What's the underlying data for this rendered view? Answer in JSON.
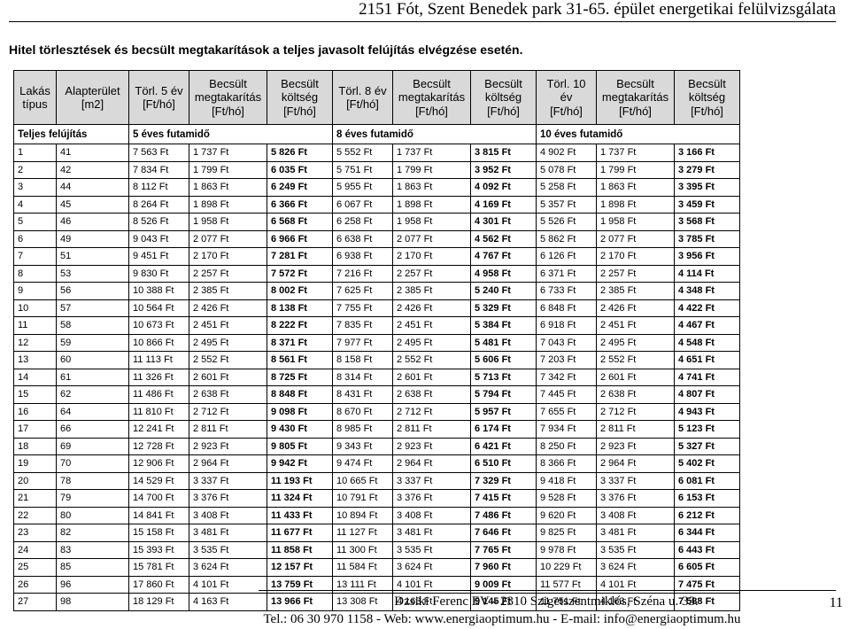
{
  "header": {
    "title": "2151 Fót, Szent Benedek park 31-65. épület energetikai felülvizsgálata"
  },
  "section": {
    "heading": "Hitel törlesztések és becsült megtakarítások a teljes javasolt felújítás elvégzése esetén."
  },
  "table": {
    "headers": [
      [
        "Lakás",
        "típus"
      ],
      [
        "Alapterület",
        "[m2]"
      ],
      [
        "Törl. 5 év",
        "[Ft/hó]"
      ],
      [
        "Becsült",
        "megtakarítás",
        "[Ft/hó]"
      ],
      [
        "Becsült",
        "költség",
        "[Ft/hó]"
      ],
      [
        "Törl. 8 év",
        "[Ft/hó]"
      ],
      [
        "Becsült",
        "megtakarítás",
        "[Ft/hó]"
      ],
      [
        "Becsült",
        "költség",
        "[Ft/hó]"
      ],
      [
        "Törl. 10",
        "év",
        "[Ft/hó]"
      ],
      [
        "Becsült",
        "megtakarítás",
        "[Ft/hó]"
      ],
      [
        "Becsült",
        "költség",
        "[Ft/hó]"
      ]
    ],
    "period_row": {
      "label": "Teljes felújítás",
      "p5": "5 éves futamidő",
      "p8": "8 éves futamidő",
      "p10": "10 éves futamidő"
    },
    "rows": [
      [
        "1",
        "41",
        "7 563 Ft",
        "1 737 Ft",
        "5 826 Ft",
        "5 552 Ft",
        "1 737 Ft",
        "3 815 Ft",
        "4 902 Ft",
        "1 737 Ft",
        "3 166 Ft"
      ],
      [
        "2",
        "42",
        "7 834 Ft",
        "1 799 Ft",
        "6 035 Ft",
        "5 751 Ft",
        "1 799 Ft",
        "3 952 Ft",
        "5 078 Ft",
        "1 799 Ft",
        "3 279 Ft"
      ],
      [
        "3",
        "44",
        "8 112 Ft",
        "1 863 Ft",
        "6 249 Ft",
        "5 955 Ft",
        "1 863 Ft",
        "4 092 Ft",
        "5 258 Ft",
        "1 863 Ft",
        "3 395 Ft"
      ],
      [
        "4",
        "45",
        "8 264 Ft",
        "1 898 Ft",
        "6 366 Ft",
        "6 067 Ft",
        "1 898 Ft",
        "4 169 Ft",
        "5 357 Ft",
        "1 898 Ft",
        "3 459 Ft"
      ],
      [
        "5",
        "46",
        "8 526 Ft",
        "1 958 Ft",
        "6 568 Ft",
        "6 258 Ft",
        "1 958 Ft",
        "4 301 Ft",
        "5 526 Ft",
        "1 958 Ft",
        "3 568 Ft"
      ],
      [
        "6",
        "49",
        "9 043 Ft",
        "2 077 Ft",
        "6 966 Ft",
        "6 638 Ft",
        "2 077 Ft",
        "4 562 Ft",
        "5 862 Ft",
        "2 077 Ft",
        "3 785 Ft"
      ],
      [
        "7",
        "51",
        "9 451 Ft",
        "2 170 Ft",
        "7 281 Ft",
        "6 938 Ft",
        "2 170 Ft",
        "4 767 Ft",
        "6 126 Ft",
        "2 170 Ft",
        "3 956 Ft"
      ],
      [
        "8",
        "53",
        "9 830 Ft",
        "2 257 Ft",
        "7 572 Ft",
        "7 216 Ft",
        "2 257 Ft",
        "4 958 Ft",
        "6 371 Ft",
        "2 257 Ft",
        "4 114 Ft"
      ],
      [
        "9",
        "56",
        "10 388 Ft",
        "2 385 Ft",
        "8 002 Ft",
        "7 625 Ft",
        "2 385 Ft",
        "5 240 Ft",
        "6 733 Ft",
        "2 385 Ft",
        "4 348 Ft"
      ],
      [
        "10",
        "57",
        "10 564 Ft",
        "2 426 Ft",
        "8 138 Ft",
        "7 755 Ft",
        "2 426 Ft",
        "5 329 Ft",
        "6 848 Ft",
        "2 426 Ft",
        "4 422 Ft"
      ],
      [
        "11",
        "58",
        "10 673 Ft",
        "2 451 Ft",
        "8 222 Ft",
        "7 835 Ft",
        "2 451 Ft",
        "5 384 Ft",
        "6 918 Ft",
        "2 451 Ft",
        "4 467 Ft"
      ],
      [
        "12",
        "59",
        "10 866 Ft",
        "2 495 Ft",
        "8 371 Ft",
        "7 977 Ft",
        "2 495 Ft",
        "5 481 Ft",
        "7 043 Ft",
        "2 495 Ft",
        "4 548 Ft"
      ],
      [
        "13",
        "60",
        "11 113 Ft",
        "2 552 Ft",
        "8 561 Ft",
        "8 158 Ft",
        "2 552 Ft",
        "5 606 Ft",
        "7 203 Ft",
        "2 552 Ft",
        "4 651 Ft"
      ],
      [
        "14",
        "61",
        "11 326 Ft",
        "2 601 Ft",
        "8 725 Ft",
        "8 314 Ft",
        "2 601 Ft",
        "5 713 Ft",
        "7 342 Ft",
        "2 601 Ft",
        "4 741 Ft"
      ],
      [
        "15",
        "62",
        "11 486 Ft",
        "2 638 Ft",
        "8 848 Ft",
        "8 431 Ft",
        "2 638 Ft",
        "5 794 Ft",
        "7 445 Ft",
        "2 638 Ft",
        "4 807 Ft"
      ],
      [
        "16",
        "64",
        "11 810 Ft",
        "2 712 Ft",
        "9 098 Ft",
        "8 670 Ft",
        "2 712 Ft",
        "5 957 Ft",
        "7 655 Ft",
        "2 712 Ft",
        "4 943 Ft"
      ],
      [
        "17",
        "66",
        "12 241 Ft",
        "2 811 Ft",
        "9 430 Ft",
        "8 985 Ft",
        "2 811 Ft",
        "6 174 Ft",
        "7 934 Ft",
        "2 811 Ft",
        "5 123 Ft"
      ],
      [
        "18",
        "69",
        "12 728 Ft",
        "2 923 Ft",
        "9 805 Ft",
        "9 343 Ft",
        "2 923 Ft",
        "6 421 Ft",
        "8 250 Ft",
        "2 923 Ft",
        "5 327 Ft"
      ],
      [
        "19",
        "70",
        "12 906 Ft",
        "2 964 Ft",
        "9 942 Ft",
        "9 474 Ft",
        "2 964 Ft",
        "6 510 Ft",
        "8 366 Ft",
        "2 964 Ft",
        "5 402 Ft"
      ],
      [
        "20",
        "78",
        "14 529 Ft",
        "3 337 Ft",
        "11 193 Ft",
        "10 665 Ft",
        "3 337 Ft",
        "7 329 Ft",
        "9 418 Ft",
        "3 337 Ft",
        "6 081 Ft"
      ],
      [
        "21",
        "79",
        "14 700 Ft",
        "3 376 Ft",
        "11 324 Ft",
        "10 791 Ft",
        "3 376 Ft",
        "7 415 Ft",
        "9 528 Ft",
        "3 376 Ft",
        "6 153 Ft"
      ],
      [
        "22",
        "80",
        "14 841 Ft",
        "3 408 Ft",
        "11 433 Ft",
        "10 894 Ft",
        "3 408 Ft",
        "7 486 Ft",
        "9 620 Ft",
        "3 408 Ft",
        "6 212 Ft"
      ],
      [
        "23",
        "82",
        "15 158 Ft",
        "3 481 Ft",
        "11 677 Ft",
        "11 127 Ft",
        "3 481 Ft",
        "7 646 Ft",
        "9 825 Ft",
        "3 481 Ft",
        "6 344 Ft"
      ],
      [
        "24",
        "83",
        "15 393 Ft",
        "3 535 Ft",
        "11 858 Ft",
        "11 300 Ft",
        "3 535 Ft",
        "7 765 Ft",
        "9 978 Ft",
        "3 535 Ft",
        "6 443 Ft"
      ],
      [
        "25",
        "85",
        "15 781 Ft",
        "3 624 Ft",
        "12 157 Ft",
        "11 584 Ft",
        "3 624 Ft",
        "7 960 Ft",
        "10 229 Ft",
        "3 624 Ft",
        "6 605 Ft"
      ],
      [
        "26",
        "96",
        "17 860 Ft",
        "4 101 Ft",
        "13 759 Ft",
        "13 111 Ft",
        "4 101 Ft",
        "9 009 Ft",
        "11 577 Ft",
        "4 101 Ft",
        "7 475 Ft"
      ],
      [
        "27",
        "98",
        "18 129 Ft",
        "4 163 Ft",
        "13 966 Ft",
        "13 308 Ft",
        "4 163 Ft",
        "9 145 Ft",
        "11 751 Ft",
        "4 163 Ft",
        "7 588 Ft"
      ]
    ]
  },
  "footer": {
    "line1": "Dzsiki Ferenc EV - 2310 Szigetszentmiklós, Széna u. 33.",
    "line2": "Tel.: 06 30 970 1158 - Web: www.energiaoptimum.hu - E-mail: info@energiaoptimum.hu",
    "page_number": "11"
  }
}
